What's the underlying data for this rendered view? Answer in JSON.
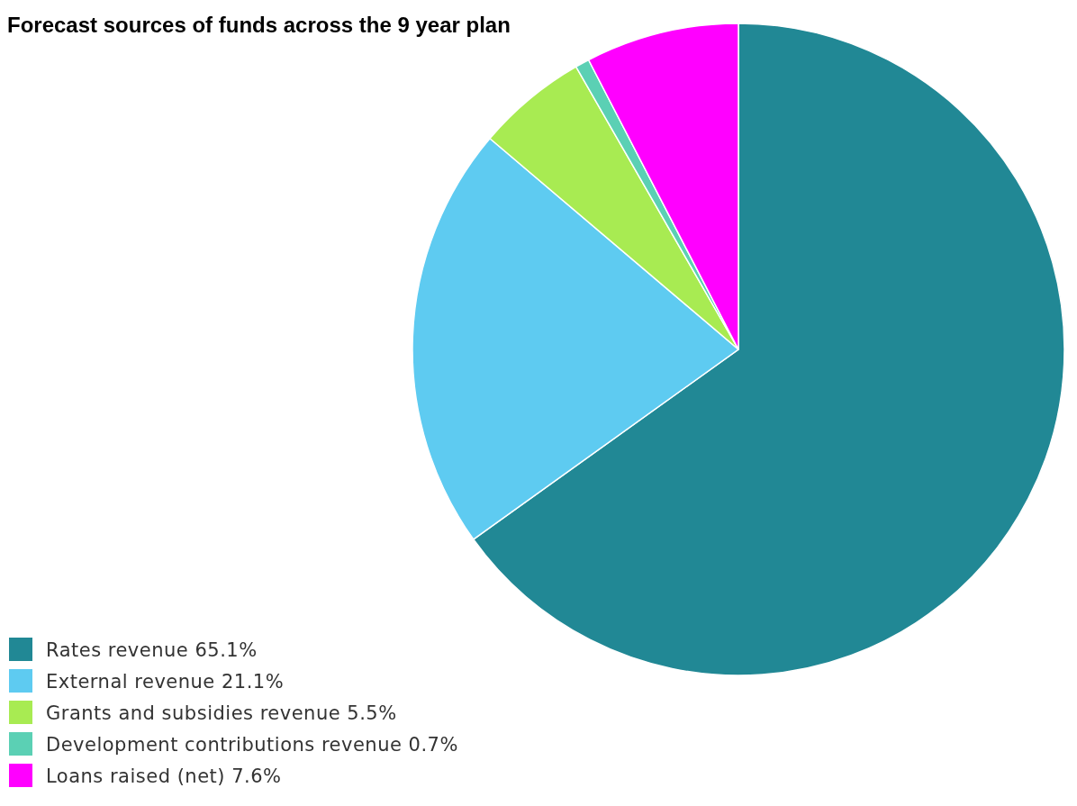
{
  "chart_data": {
    "type": "pie",
    "title": "Forecast sources of funds across the 9 year plan",
    "categories": [
      "Rates revenue 65.1%",
      "External revenue 21.1%",
      "Grants and subsidies revenue 5.5%",
      "Development contributions revenue 0.7%",
      "Loans raised (net) 7.6%"
    ],
    "values": [
      65.1,
      21.1,
      5.5,
      0.7,
      7.6
    ],
    "colors": [
      "#218895",
      "#5ecbf1",
      "#a8eb52",
      "#5bd0b4",
      "#ff00ff"
    ],
    "legend": "bottom left"
  }
}
